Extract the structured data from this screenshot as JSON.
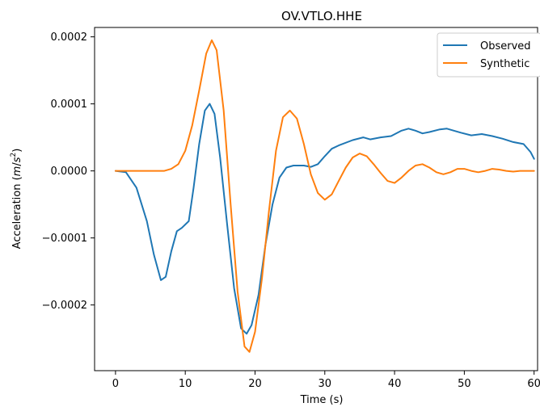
{
  "chart_data": {
    "type": "line",
    "title": "OV.VTLO.HHE",
    "xlabel": "Time (s)",
    "ylabel": "Acceleration (m/s²)",
    "xlim": [
      -3,
      60.5
    ],
    "ylim": [
      -0.000298,
      0.000214
    ],
    "x_ticks": [
      0,
      10,
      20,
      30,
      40,
      50,
      60
    ],
    "y_ticks": [
      -0.0002,
      -0.0001,
      0.0,
      0.0001,
      0.0002
    ],
    "y_tick_labels": [
      "−0.0002",
      "−0.0001",
      "0.0000",
      "0.0001",
      "0.0002"
    ],
    "legend": {
      "placement": "top-right"
    },
    "grid": false,
    "series": [
      {
        "name": "Observed",
        "color": "#1f77b4",
        "x": [
          0,
          1.5,
          3,
          4.5,
          5.5,
          6.5,
          7.2,
          8,
          8.8,
          9.5,
          10.5,
          11.2,
          12,
          12.8,
          13.5,
          14.2,
          15,
          16,
          17,
          18,
          18.8,
          19.5,
          20.5,
          21.5,
          22.5,
          23.5,
          24.5,
          25.5,
          27,
          28,
          29,
          30,
          31,
          32,
          34,
          35.5,
          36.5,
          38,
          39.5,
          41,
          42,
          43,
          44,
          45,
          46.5,
          47.5,
          48.5,
          49.5,
          51,
          52.5,
          54,
          55.5,
          57,
          58.5,
          59.5,
          60
        ],
        "y": [
          0.0,
          -2e-06,
          -2.5e-05,
          -7.5e-05,
          -0.000125,
          -0.000163,
          -0.000158,
          -0.00012,
          -9e-05,
          -8.5e-05,
          -7.5e-05,
          -2.5e-05,
          4e-05,
          9e-05,
          0.0001,
          8.5e-05,
          2e-05,
          -8e-05,
          -0.000175,
          -0.000235,
          -0.000243,
          -0.00023,
          -0.000185,
          -0.00011,
          -5e-05,
          -1e-05,
          5e-06,
          8e-06,
          8e-06,
          6e-06,
          1e-05,
          2.2e-05,
          3.3e-05,
          3.8e-05,
          4.6e-05,
          5e-05,
          4.7e-05,
          5e-05,
          5.2e-05,
          6e-05,
          6.3e-05,
          6e-05,
          5.6e-05,
          5.8e-05,
          6.2e-05,
          6.3e-05,
          6e-05,
          5.7e-05,
          5.3e-05,
          5.5e-05,
          5.2e-05,
          4.8e-05,
          4.3e-05,
          4e-05,
          2.8e-05,
          1.8e-05
        ]
      },
      {
        "name": "Synthetic",
        "color": "#ff7f0e",
        "x": [
          0,
          3,
          5,
          7,
          8,
          9,
          10,
          11,
          12,
          13,
          13.8,
          14.5,
          15.5,
          16.5,
          17.5,
          18.5,
          19.2,
          20,
          21,
          22,
          23,
          24,
          25,
          26,
          27,
          28,
          29,
          30,
          31,
          32,
          33,
          34,
          35,
          36,
          37,
          38,
          39,
          40,
          41,
          42,
          43,
          44,
          45,
          46,
          47,
          48,
          49,
          50,
          51,
          52,
          53,
          54,
          55,
          56,
          57,
          58,
          59,
          60
        ],
        "y": [
          0.0,
          0.0,
          0.0,
          0.0,
          3e-06,
          1e-05,
          3e-05,
          6.8e-05,
          0.00012,
          0.000175,
          0.000195,
          0.00018,
          9e-05,
          -5e-05,
          -0.00018,
          -0.000262,
          -0.00027,
          -0.00024,
          -0.00016,
          -6e-05,
          3e-05,
          8e-05,
          9e-05,
          7.8e-05,
          4e-05,
          -5e-06,
          -3.3e-05,
          -4.3e-05,
          -3.5e-05,
          -1.5e-05,
          5e-06,
          2e-05,
          2.6e-05,
          2.2e-05,
          1e-05,
          -3e-06,
          -1.5e-05,
          -1.8e-05,
          -1e-05,
          0.0,
          8e-06,
          1e-05,
          5e-06,
          -2e-06,
          -5e-06,
          -2e-06,
          3e-06,
          3e-06,
          0.0,
          -2e-06,
          0.0,
          3e-06,
          2e-06,
          0.0,
          -1e-06,
          0.0,
          0.0,
          0.0
        ]
      }
    ]
  }
}
